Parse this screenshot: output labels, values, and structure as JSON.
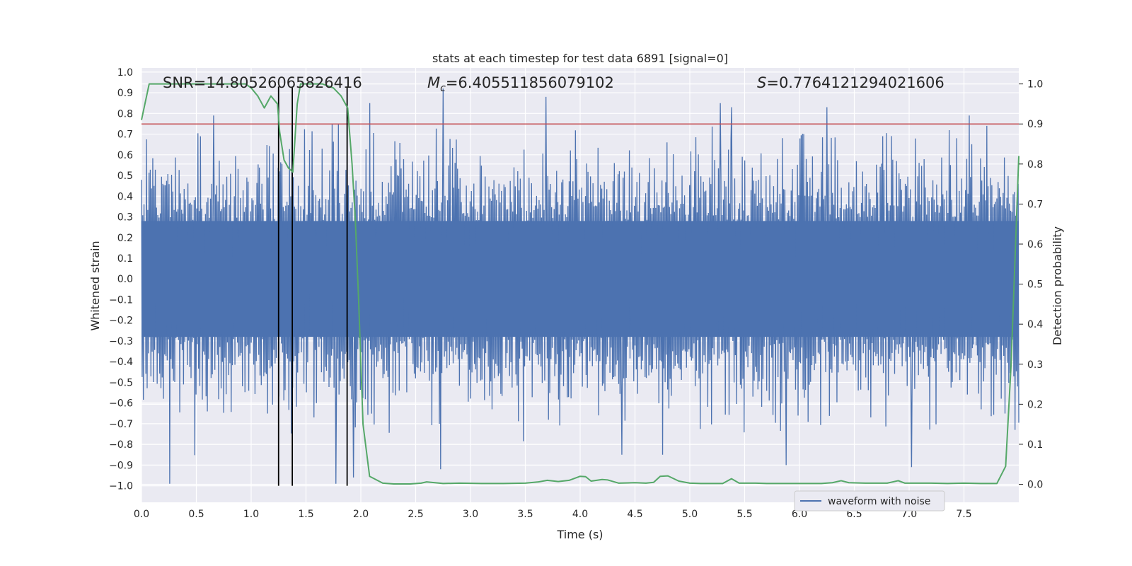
{
  "chart_data": {
    "type": "line",
    "title": "stats at each timestep for test data 6891 [signal=0]",
    "xlabel": "Time (s)",
    "ylabel_left": "Whitened strain",
    "ylabel_right": "Detection probability",
    "xlim": [
      0.0,
      8.0
    ],
    "ylim_left": [
      -1.08,
      1.02
    ],
    "ylim_right": [
      -0.045,
      1.04
    ],
    "xticks": [
      "0.0",
      "0.5",
      "1.0",
      "1.5",
      "2.0",
      "2.5",
      "3.0",
      "3.5",
      "4.0",
      "4.5",
      "5.0",
      "5.5",
      "6.0",
      "6.5",
      "7.0",
      "7.5"
    ],
    "yticks_left": [
      "1.0",
      "0.9",
      "0.8",
      "0.7",
      "0.6",
      "0.5",
      "0.4",
      "0.3",
      "0.2",
      "0.1",
      "0.0",
      "−0.1",
      "−0.2",
      "−0.3",
      "−0.4",
      "−0.5",
      "−0.6",
      "−0.7",
      "−0.8",
      "−0.9",
      "−1.0"
    ],
    "yticks_right": [
      "1.0",
      "0.9",
      "0.8",
      "0.7",
      "0.6",
      "0.5",
      "0.4",
      "0.3",
      "0.2",
      "0.1",
      "0.0"
    ],
    "annotations": {
      "snr": "SNR=14.80526065826416",
      "mc_symbol": "M",
      "mc_sub": "c",
      "mc_value": "=6.405511856079102",
      "s_symbol": "S",
      "s_value": "=0.7764121294021606"
    },
    "legend": {
      "label": "waveform with noise",
      "placement": "lower-right"
    },
    "threshold": {
      "value": 0.9,
      "axis": "right",
      "color": "#c44e52"
    },
    "vertical_lines": [
      1.25,
      1.375,
      1.875
    ],
    "waveform": {
      "name": "waveform with noise",
      "color": "#4c72b0",
      "seed": 6891,
      "samples": 1400,
      "amplitude_estimate": 0.35,
      "extreme_peaks": [
        {
          "t": 0.26,
          "v": -0.99
        },
        {
          "t": 0.66,
          "v": 0.79
        },
        {
          "t": 1.77,
          "v": -0.99
        },
        {
          "t": 2.08,
          "v": 0.85
        },
        {
          "t": 2.75,
          "v": 0.92
        },
        {
          "t": 2.73,
          "v": -0.92
        },
        {
          "t": 3.69,
          "v": 0.88
        },
        {
          "t": 4.38,
          "v": -0.85
        },
        {
          "t": 4.75,
          "v": -0.85
        },
        {
          "t": 5.28,
          "v": 0.85
        },
        {
          "t": 5.38,
          "v": 0.83
        },
        {
          "t": 6.25,
          "v": 0.83
        },
        {
          "t": 5.88,
          "v": -0.9
        },
        {
          "t": 7.02,
          "v": -0.91
        },
        {
          "t": 7.55,
          "v": -0.96
        },
        {
          "t": 7.55,
          "v": 0.79
        },
        {
          "t": 7.71,
          "v": 0.74
        },
        {
          "t": 1.93,
          "v": -0.96
        }
      ]
    },
    "probability": {
      "name": "detection probability",
      "color": "#55a868",
      "axis": "right",
      "x": [
        0.0,
        0.07,
        0.2,
        0.4,
        0.6,
        0.8,
        0.95,
        1.0,
        1.06,
        1.12,
        1.18,
        1.24,
        1.26,
        1.3,
        1.34,
        1.38,
        1.42,
        1.45,
        1.55,
        1.65,
        1.75,
        1.82,
        1.88,
        1.92,
        1.95,
        1.98,
        2.02,
        2.08,
        2.15,
        2.2,
        2.3,
        2.45,
        2.55,
        2.6,
        2.75,
        2.9,
        3.1,
        3.3,
        3.5,
        3.62,
        3.7,
        3.8,
        3.9,
        4.0,
        4.05,
        4.1,
        4.2,
        4.25,
        4.35,
        4.5,
        4.6,
        4.67,
        4.73,
        4.8,
        4.9,
        5.0,
        5.1,
        5.2,
        5.3,
        5.38,
        5.45,
        5.6,
        5.7,
        5.8,
        6.0,
        6.2,
        6.3,
        6.38,
        6.45,
        6.6,
        6.8,
        6.9,
        6.96,
        7.05,
        7.2,
        7.35,
        7.5,
        7.65,
        7.8,
        7.88,
        7.93,
        8.0
      ],
      "values": [
        0.91,
        1.0,
        1.0,
        1.0,
        1.0,
        1.0,
        1.0,
        0.99,
        0.97,
        0.94,
        0.97,
        0.95,
        0.88,
        0.81,
        0.79,
        0.78,
        0.95,
        1.0,
        1.0,
        1.0,
        0.99,
        0.97,
        0.94,
        0.8,
        0.66,
        0.46,
        0.15,
        0.02,
        0.01,
        0.003,
        0.001,
        0.001,
        0.003,
        0.006,
        0.002,
        0.003,
        0.002,
        0.002,
        0.003,
        0.006,
        0.01,
        0.007,
        0.01,
        0.02,
        0.019,
        0.008,
        0.012,
        0.011,
        0.003,
        0.004,
        0.003,
        0.005,
        0.02,
        0.021,
        0.008,
        0.003,
        0.002,
        0.002,
        0.002,
        0.014,
        0.003,
        0.003,
        0.002,
        0.002,
        0.002,
        0.002,
        0.004,
        0.009,
        0.004,
        0.003,
        0.003,
        0.009,
        0.003,
        0.003,
        0.003,
        0.002,
        0.003,
        0.002,
        0.002,
        0.045,
        0.3,
        0.82
      ]
    }
  }
}
